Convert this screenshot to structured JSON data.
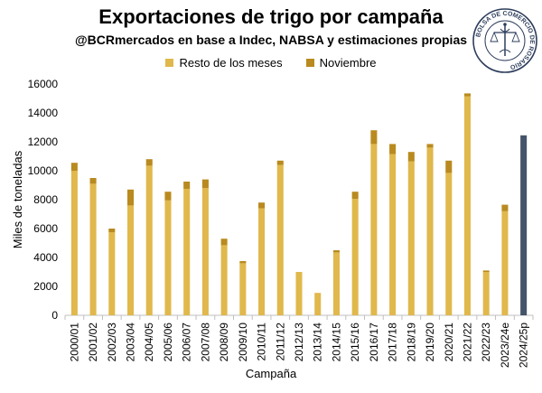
{
  "header": {
    "title": "Exportaciones de trigo por campaña",
    "subtitle": "@BCRmercados en base a Indec, NABSA y estimaciones propias"
  },
  "logo": {
    "text": "BOLSA DE COMERCIO DE ROSARIO",
    "icon": "bcr-seal-logo"
  },
  "colors": {
    "resto": "#e0b84c",
    "noviembre": "#b98a1f",
    "projection": "#44546a",
    "axis": "#bfbfbf"
  },
  "chart_data": {
    "type": "bar",
    "stacked": true,
    "xlabel": "Campaña",
    "ylabel": "Miles de toneladas",
    "ylim": [
      0,
      16000
    ],
    "yticks": [
      0,
      2000,
      4000,
      6000,
      8000,
      10000,
      12000,
      14000,
      16000
    ],
    "grid": false,
    "legend_position": "top",
    "categories": [
      "2000/01",
      "2001/02",
      "2002/03",
      "2003/04",
      "2004/05",
      "2005/06",
      "2006/07",
      "2007/08",
      "2008/09",
      "2009/10",
      "2010/11",
      "2011/12",
      "2012/13",
      "2013/14",
      "2014/15",
      "2015/16",
      "2016/17",
      "2017/18",
      "2018/19",
      "2019/20",
      "2020/21",
      "2021/22",
      "2022/23",
      "2023/24e",
      "2024/25p"
    ],
    "series": [
      {
        "name": "Resto de los meses",
        "values": [
          10000,
          9100,
          5750,
          7600,
          10350,
          7950,
          8750,
          8800,
          4850,
          3600,
          7400,
          10400,
          3000,
          1550,
          4350,
          8050,
          11850,
          11150,
          10650,
          11600,
          9850,
          15150,
          3000,
          7200,
          null
        ]
      },
      {
        "name": "Noviembre",
        "values": [
          550,
          400,
          250,
          1100,
          450,
          600,
          500,
          600,
          450,
          150,
          400,
          300,
          0,
          0,
          150,
          500,
          950,
          700,
          650,
          250,
          850,
          200,
          100,
          450,
          null
        ]
      },
      {
        "name": "",
        "values": [
          null,
          null,
          null,
          null,
          null,
          null,
          null,
          null,
          null,
          null,
          null,
          null,
          null,
          null,
          null,
          null,
          null,
          null,
          null,
          null,
          null,
          null,
          null,
          null,
          12450
        ]
      }
    ]
  }
}
